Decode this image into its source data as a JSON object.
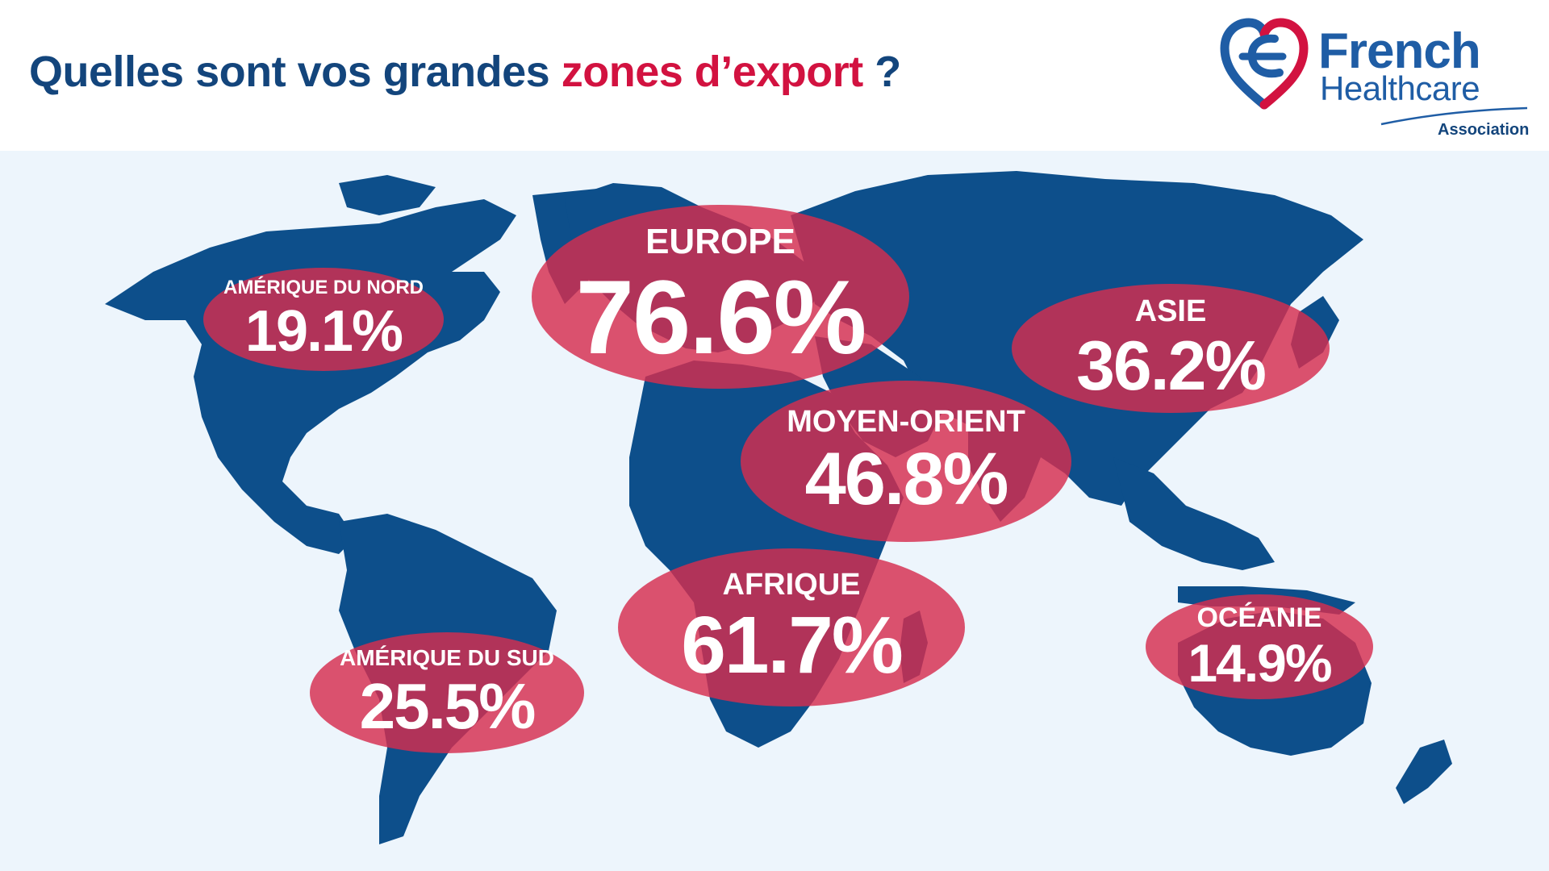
{
  "header": {
    "title_prefix": "Quelles sont vos grandes ",
    "title_accent": "zones d’export",
    "title_suffix": " ?"
  },
  "logo": {
    "line1": "French",
    "line2": "Healthcare",
    "line3": "Association"
  },
  "regions": [
    {
      "label": "AMÉRIQUE DU NORD",
      "value": "19.1%"
    },
    {
      "label": "EUROPE",
      "value": "76.6%"
    },
    {
      "label": "ASIE",
      "value": "36.2%"
    },
    {
      "label": "MOYEN-ORIENT",
      "value": "46.8%"
    },
    {
      "label": "AFRIQUE",
      "value": "61.7%"
    },
    {
      "label": "AMÉRIQUE DU SUD",
      "value": "25.5%"
    },
    {
      "label": "OCÉANIE",
      "value": "14.9%"
    }
  ],
  "colors": {
    "title": "#13457c",
    "accent": "#d21240",
    "land": "#0d4f8b",
    "ocean": "#edf5fc",
    "bubble": "#d62d4e"
  }
}
